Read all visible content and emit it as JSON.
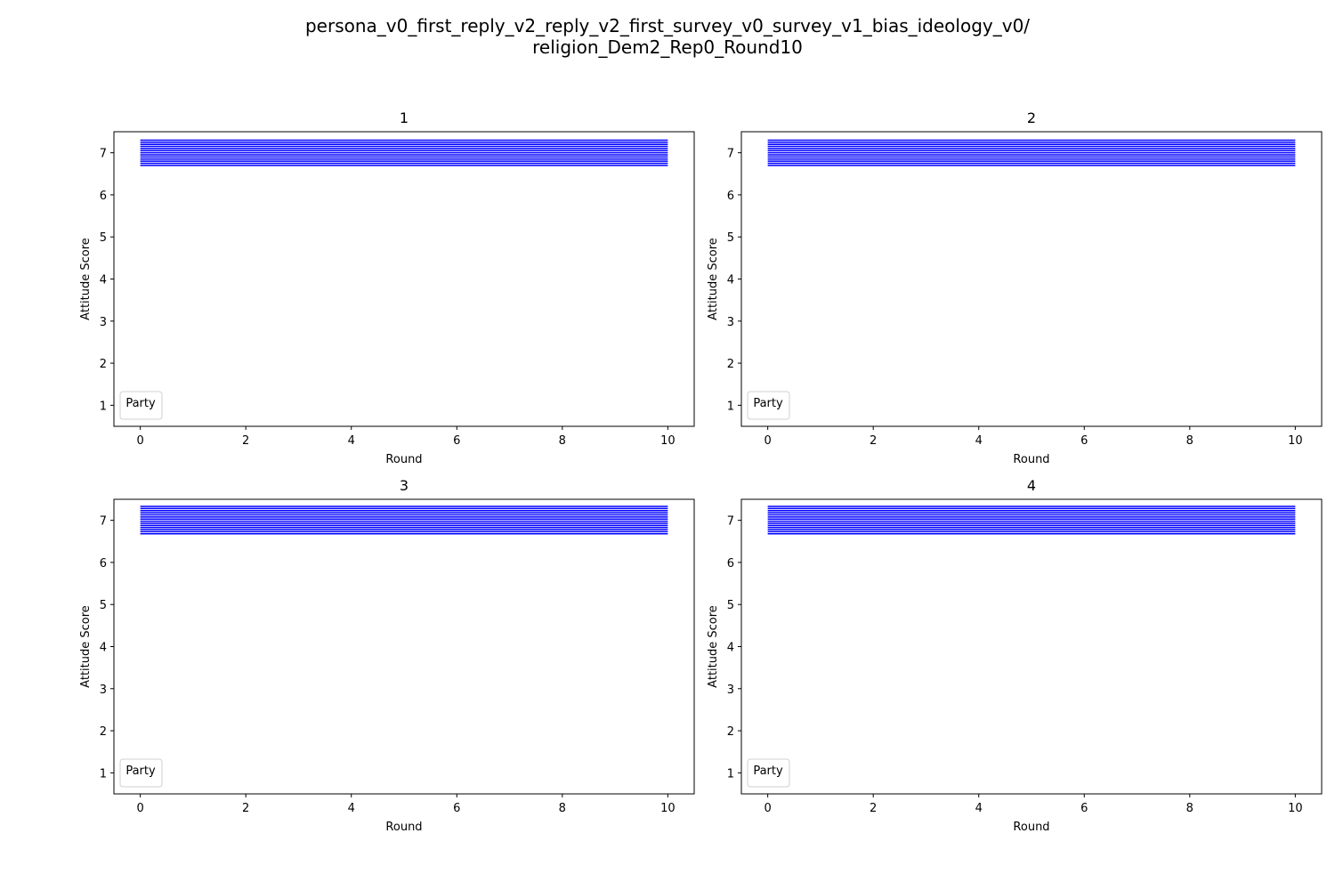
{
  "figure": {
    "title_line1": "persona_v0_first_reply_v2_reply_v2_first_survey_v0_survey_v1_bias_ideology_v0/",
    "title_line2": "religion_Dem2_Rep0_Round10"
  },
  "chart_data": [
    {
      "type": "line",
      "title": "1",
      "xlabel": "Round",
      "ylabel": "Attitude Score",
      "xlim": [
        -0.5,
        10.5
      ],
      "ylim": [
        0.5,
        7.5
      ],
      "xticks": [
        0,
        2,
        4,
        6,
        8,
        10
      ],
      "yticks": [
        1,
        2,
        3,
        4,
        5,
        6,
        7
      ],
      "legend_title": "Party",
      "legend_position": "lower-left",
      "line_color": "#0000ff",
      "series": [
        {
          "x": [
            0,
            10
          ],
          "values": [
            7.3,
            7.3
          ]
        },
        {
          "x": [
            0,
            10
          ],
          "values": [
            7.25,
            7.25
          ]
        },
        {
          "x": [
            0,
            10
          ],
          "values": [
            7.2,
            7.2
          ]
        },
        {
          "x": [
            0,
            10
          ],
          "values": [
            7.15,
            7.15
          ]
        },
        {
          "x": [
            0,
            10
          ],
          "values": [
            7.1,
            7.1
          ]
        },
        {
          "x": [
            0,
            10
          ],
          "values": [
            7.05,
            7.05
          ]
        },
        {
          "x": [
            0,
            10
          ],
          "values": [
            7.0,
            7.0
          ]
        },
        {
          "x": [
            0,
            10
          ],
          "values": [
            6.95,
            6.95
          ]
        },
        {
          "x": [
            0,
            10
          ],
          "values": [
            6.9,
            6.9
          ]
        },
        {
          "x": [
            0,
            10
          ],
          "values": [
            6.85,
            6.85
          ]
        },
        {
          "x": [
            0,
            10
          ],
          "values": [
            6.8,
            6.8
          ]
        },
        {
          "x": [
            0,
            10
          ],
          "values": [
            6.75,
            6.75
          ]
        },
        {
          "x": [
            0,
            10
          ],
          "values": [
            6.7,
            6.7
          ]
        }
      ]
    },
    {
      "type": "line",
      "title": "2",
      "xlabel": "Round",
      "ylabel": "Attitude Score",
      "xlim": [
        -0.5,
        10.5
      ],
      "ylim": [
        0.5,
        7.5
      ],
      "xticks": [
        0,
        2,
        4,
        6,
        8,
        10
      ],
      "yticks": [
        1,
        2,
        3,
        4,
        5,
        6,
        7
      ],
      "legend_title": "Party",
      "legend_position": "lower-left",
      "line_color": "#0000ff",
      "series": [
        {
          "x": [
            0,
            10
          ],
          "values": [
            7.3,
            7.3
          ]
        },
        {
          "x": [
            0,
            10
          ],
          "values": [
            7.25,
            7.25
          ]
        },
        {
          "x": [
            0,
            10
          ],
          "values": [
            7.2,
            7.2
          ]
        },
        {
          "x": [
            0,
            10
          ],
          "values": [
            7.15,
            7.15
          ]
        },
        {
          "x": [
            0,
            10
          ],
          "values": [
            7.1,
            7.1
          ]
        },
        {
          "x": [
            0,
            10
          ],
          "values": [
            7.05,
            7.05
          ]
        },
        {
          "x": [
            0,
            10
          ],
          "values": [
            7.0,
            7.0
          ]
        },
        {
          "x": [
            0,
            10
          ],
          "values": [
            6.95,
            6.95
          ]
        },
        {
          "x": [
            0,
            10
          ],
          "values": [
            6.9,
            6.9
          ]
        },
        {
          "x": [
            0,
            10
          ],
          "values": [
            6.85,
            6.85
          ]
        },
        {
          "x": [
            0,
            10
          ],
          "values": [
            6.8,
            6.8
          ]
        },
        {
          "x": [
            0,
            10
          ],
          "values": [
            6.75,
            6.75
          ]
        },
        {
          "x": [
            0,
            10
          ],
          "values": [
            6.7,
            6.7
          ]
        }
      ]
    },
    {
      "type": "line",
      "title": "3",
      "xlabel": "Round",
      "ylabel": "Attitude Score",
      "xlim": [
        -0.5,
        10.5
      ],
      "ylim": [
        0.5,
        7.5
      ],
      "xticks": [
        0,
        2,
        4,
        6,
        8,
        10
      ],
      "yticks": [
        1,
        2,
        3,
        4,
        5,
        6,
        7
      ],
      "legend_title": "Party",
      "legend_position": "lower-left",
      "line_color": "#0000ff",
      "series": [
        {
          "x": [
            0,
            10
          ],
          "values": [
            7.33,
            7.33
          ]
        },
        {
          "x": [
            0,
            10
          ],
          "values": [
            7.28,
            7.28
          ]
        },
        {
          "x": [
            0,
            10
          ],
          "values": [
            7.23,
            7.23
          ]
        },
        {
          "x": [
            0,
            10
          ],
          "values": [
            7.18,
            7.18
          ]
        },
        {
          "x": [
            0,
            10
          ],
          "values": [
            7.13,
            7.13
          ]
        },
        {
          "x": [
            0,
            10
          ],
          "values": [
            7.08,
            7.08
          ]
        },
        {
          "x": [
            0,
            10
          ],
          "values": [
            7.03,
            7.03
          ]
        },
        {
          "x": [
            0,
            10
          ],
          "values": [
            6.98,
            6.98
          ]
        },
        {
          "x": [
            0,
            10
          ],
          "values": [
            6.93,
            6.93
          ]
        },
        {
          "x": [
            0,
            10
          ],
          "values": [
            6.88,
            6.88
          ]
        },
        {
          "x": [
            0,
            10
          ],
          "values": [
            6.83,
            6.83
          ]
        },
        {
          "x": [
            0,
            10
          ],
          "values": [
            6.78,
            6.78
          ]
        },
        {
          "x": [
            0,
            10
          ],
          "values": [
            6.73,
            6.73
          ]
        },
        {
          "x": [
            0,
            10
          ],
          "values": [
            6.68,
            6.68
          ]
        }
      ]
    },
    {
      "type": "line",
      "title": "4",
      "xlabel": "Round",
      "ylabel": "Attitude Score",
      "xlim": [
        -0.5,
        10.5
      ],
      "ylim": [
        0.5,
        7.5
      ],
      "xticks": [
        0,
        2,
        4,
        6,
        8,
        10
      ],
      "yticks": [
        1,
        2,
        3,
        4,
        5,
        6,
        7
      ],
      "legend_title": "Party",
      "legend_position": "lower-left",
      "line_color": "#0000ff",
      "series": [
        {
          "x": [
            0,
            10
          ],
          "values": [
            7.33,
            7.33
          ]
        },
        {
          "x": [
            0,
            10
          ],
          "values": [
            7.28,
            7.28
          ]
        },
        {
          "x": [
            0,
            10
          ],
          "values": [
            7.23,
            7.23
          ]
        },
        {
          "x": [
            0,
            10
          ],
          "values": [
            7.18,
            7.18
          ]
        },
        {
          "x": [
            0,
            10
          ],
          "values": [
            7.13,
            7.13
          ]
        },
        {
          "x": [
            0,
            10
          ],
          "values": [
            7.08,
            7.08
          ]
        },
        {
          "x": [
            0,
            10
          ],
          "values": [
            7.03,
            7.03
          ]
        },
        {
          "x": [
            0,
            10
          ],
          "values": [
            6.98,
            6.98
          ]
        },
        {
          "x": [
            0,
            10
          ],
          "values": [
            6.93,
            6.93
          ]
        },
        {
          "x": [
            0,
            10
          ],
          "values": [
            6.88,
            6.88
          ]
        },
        {
          "x": [
            0,
            10
          ],
          "values": [
            6.83,
            6.83
          ]
        },
        {
          "x": [
            0,
            10
          ],
          "values": [
            6.78,
            6.78
          ]
        },
        {
          "x": [
            0,
            10
          ],
          "values": [
            6.73,
            6.73
          ]
        },
        {
          "x": [
            0,
            10
          ],
          "values": [
            6.68,
            6.68
          ]
        }
      ]
    }
  ]
}
